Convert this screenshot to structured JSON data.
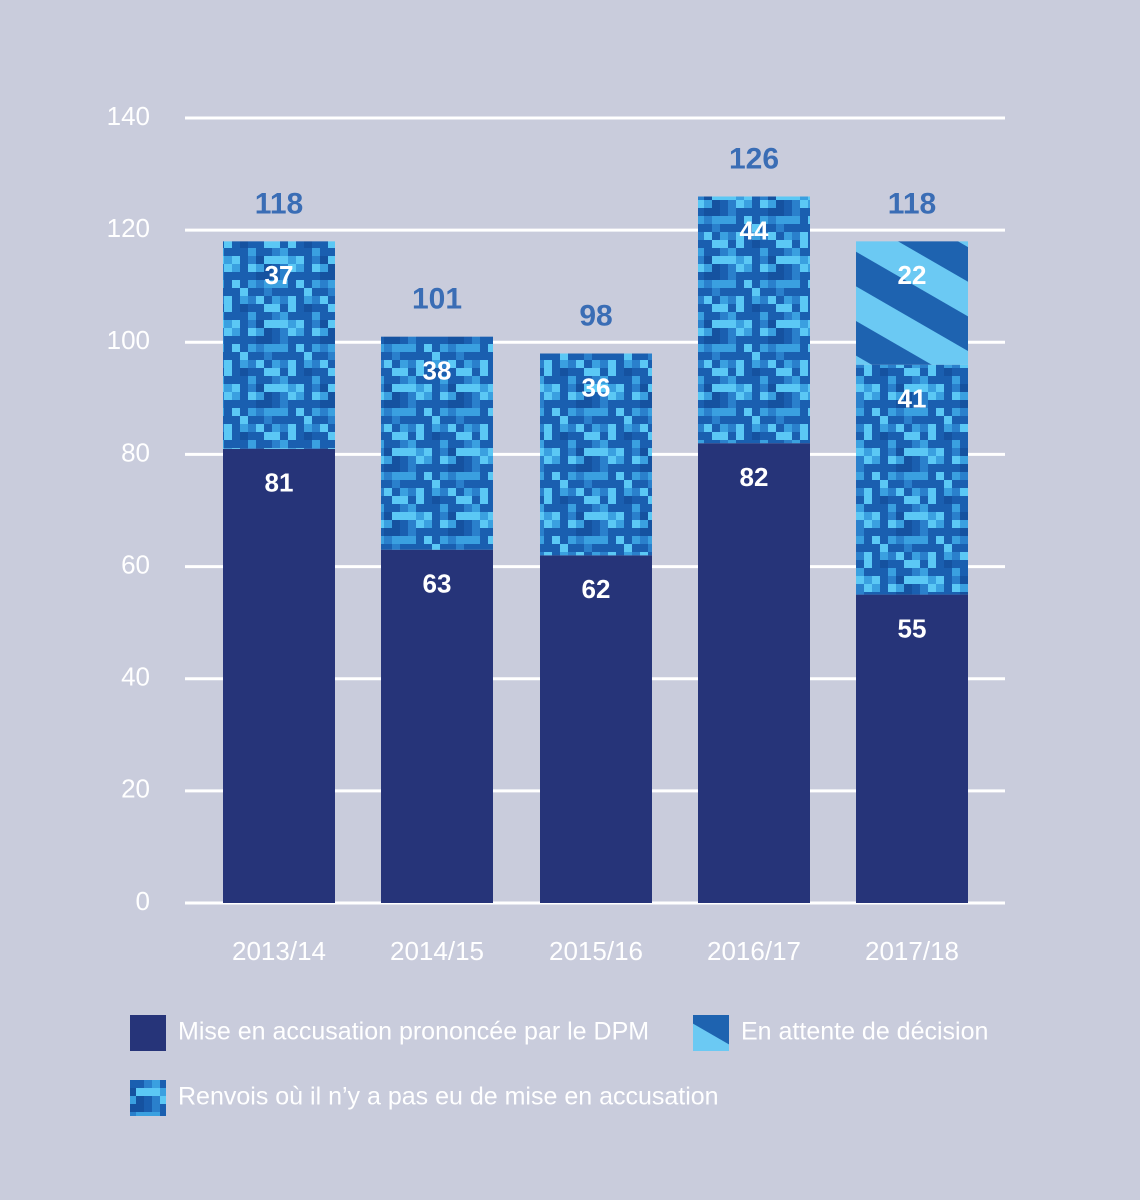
{
  "chart_data": {
    "type": "stacked_bar",
    "categories": [
      "2013/14",
      "2014/15",
      "2015/16",
      "2016/17",
      "2017/18"
    ],
    "series": [
      {
        "name": "Mise en accusation prononcée par le DPM",
        "color": "#263479",
        "values": [
          81,
          63,
          62,
          82,
          55
        ]
      },
      {
        "name": "Renvois où il n’y a pas eu de mise en accusation",
        "color": "#1a5fb0",
        "values": [
          37,
          38,
          36,
          44,
          41
        ]
      },
      {
        "name": "En attente de décision",
        "color": "#1e63b0",
        "values": [
          null,
          null,
          null,
          null,
          22
        ]
      }
    ],
    "totals": [
      118,
      101,
      98,
      126,
      118
    ],
    "ylim": [
      0,
      140
    ],
    "yticks": [
      0,
      20,
      40,
      60,
      80,
      100,
      120,
      140
    ],
    "grid": true
  }
}
